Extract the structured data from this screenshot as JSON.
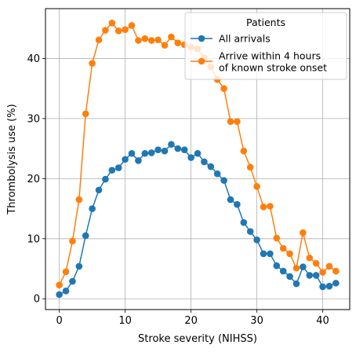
{
  "chart_data": {
    "type": "line",
    "title": "",
    "xlabel": "Stroke severity (NIHSS)",
    "ylabel": "Thrombolysis use (%)",
    "xlim": [
      -2.1,
      44.1
    ],
    "ylim": [
      -1.8,
      48.3
    ],
    "xticks": [
      0,
      10,
      20,
      30,
      40
    ],
    "yticks": [
      0,
      10,
      20,
      30,
      40
    ],
    "grid": true,
    "legend": {
      "title": "Patients",
      "placement": "top-right",
      "entries": [
        "All arrivals",
        "Arrive within 4 hours\nof known stroke onset"
      ]
    },
    "x": [
      0,
      1,
      2,
      3,
      4,
      5,
      6,
      7,
      8,
      9,
      10,
      11,
      12,
      13,
      14,
      15,
      16,
      17,
      18,
      19,
      20,
      21,
      22,
      23,
      24,
      25,
      26,
      27,
      28,
      29,
      30,
      31,
      32,
      33,
      34,
      35,
      36,
      37,
      38,
      39,
      40,
      41,
      42
    ],
    "series": [
      {
        "name": "All arrivals",
        "color": "#1f77b4",
        "values": [
          0.7,
          1.3,
          2.9,
          5.4,
          10.5,
          15.0,
          18.1,
          19.9,
          21.4,
          21.8,
          23.2,
          24.2,
          23.0,
          24.2,
          24.3,
          24.8,
          24.6,
          25.7,
          25.0,
          24.8,
          23.5,
          24.2,
          22.8,
          22.0,
          20.8,
          19.7,
          16.5,
          15.7,
          12.7,
          11.2,
          9.8,
          7.5,
          7.5,
          5.5,
          4.6,
          3.7,
          2.5,
          5.3,
          3.9,
          3.9,
          2.0,
          2.1,
          2.6
        ]
      },
      {
        "name": "Arrive within 4 hours\nof known stroke onset",
        "color": "#ff7f0e",
        "values": [
          2.3,
          4.5,
          9.6,
          16.5,
          30.8,
          39.2,
          43.1,
          44.7,
          45.9,
          44.6,
          44.8,
          45.5,
          43.0,
          43.3,
          43.0,
          43.1,
          42.2,
          43.6,
          42.6,
          42.3,
          41.9,
          41.6,
          40.1,
          38.6,
          36.5,
          35.0,
          29.5,
          29.5,
          24.6,
          21.9,
          18.7,
          15.3,
          15.4,
          10.1,
          8.4,
          7.5,
          5.1,
          11.0,
          6.8,
          5.9,
          4.4,
          5.4,
          4.6
        ]
      }
    ]
  }
}
